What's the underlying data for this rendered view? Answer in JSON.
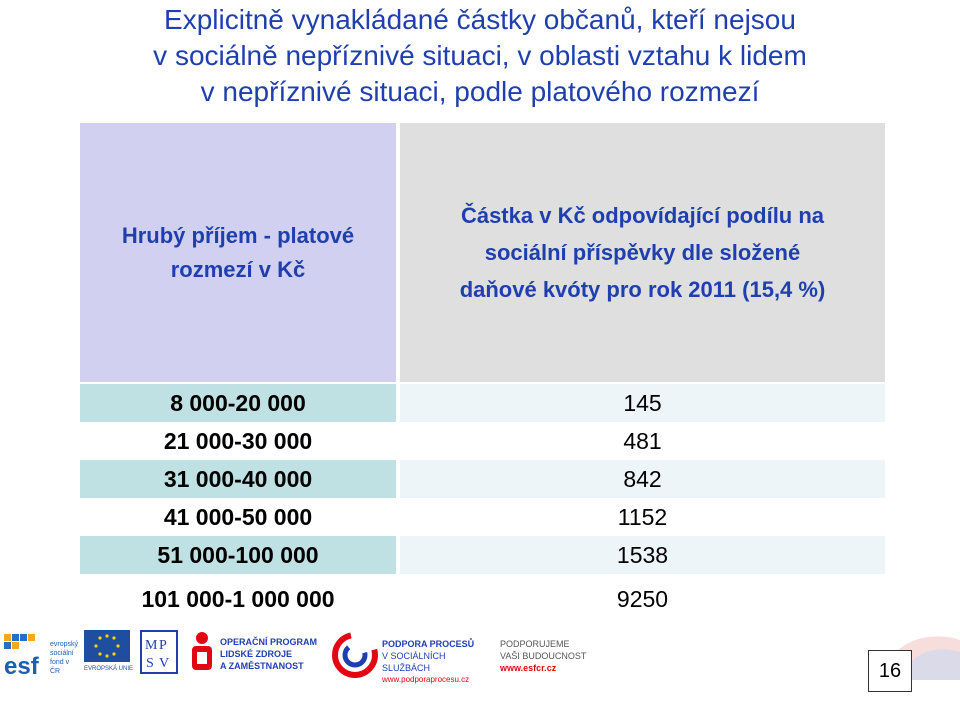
{
  "title": {
    "line1": "Explicitně vynakládané částky občanů, kteří nejsou",
    "line2": "v sociálně nepříznivé situaci, v oblasti vztahu k lidem",
    "line3": "v nepříznivé situaci, podle platového rozmezí"
  },
  "table": {
    "header_left": "Hrubý příjem - platové\nrozmezí v Kč",
    "header_right": "Částka v Kč odpovídající podílu na\nsociální příspěvky dle složené\ndaňové kvóty pro rok 2011 (15,4 %)",
    "rows": [
      {
        "range": "8 000-20 000",
        "amount": "145"
      },
      {
        "range": "21 000-30 000",
        "amount": "481"
      },
      {
        "range": "31 000-40 000",
        "amount": "842"
      },
      {
        "range": "41 000-50 000",
        "amount": "1152"
      },
      {
        "range": "51 000-100 000",
        "amount": "1538"
      },
      {
        "range": "101 000-1 000 000",
        "amount": "9250"
      }
    ]
  },
  "footer": {
    "esf_line1": "evropský",
    "esf_line2": "sociální",
    "esf_line3": "fond v ČR",
    "eu_label": "EVROPSKÁ UNIE",
    "op_line1": "OPERAČNÍ PROGRAM",
    "op_line2": "LIDSKÉ ZDROJE",
    "op_line3": "A ZAMĚSTNANOST",
    "pp_line1": "PODPORA PROCESŮ",
    "pp_line2": "V SOCIÁLNÍCH SLUŽBÁCH",
    "pp_url": "www.podporaprocesu.cz",
    "pvb_line1": "PODPORUJEME",
    "pvb_line2": "VAŠI BUDOUCNOST",
    "pvb_url": "www.esfcr.cz",
    "page_number": "16"
  },
  "colors": {
    "title": "#1f3fae",
    "header_left_bg": "#d1d0f0",
    "header_right_bg": "#dfdfdf",
    "row_accent": "#bfe1e3"
  }
}
